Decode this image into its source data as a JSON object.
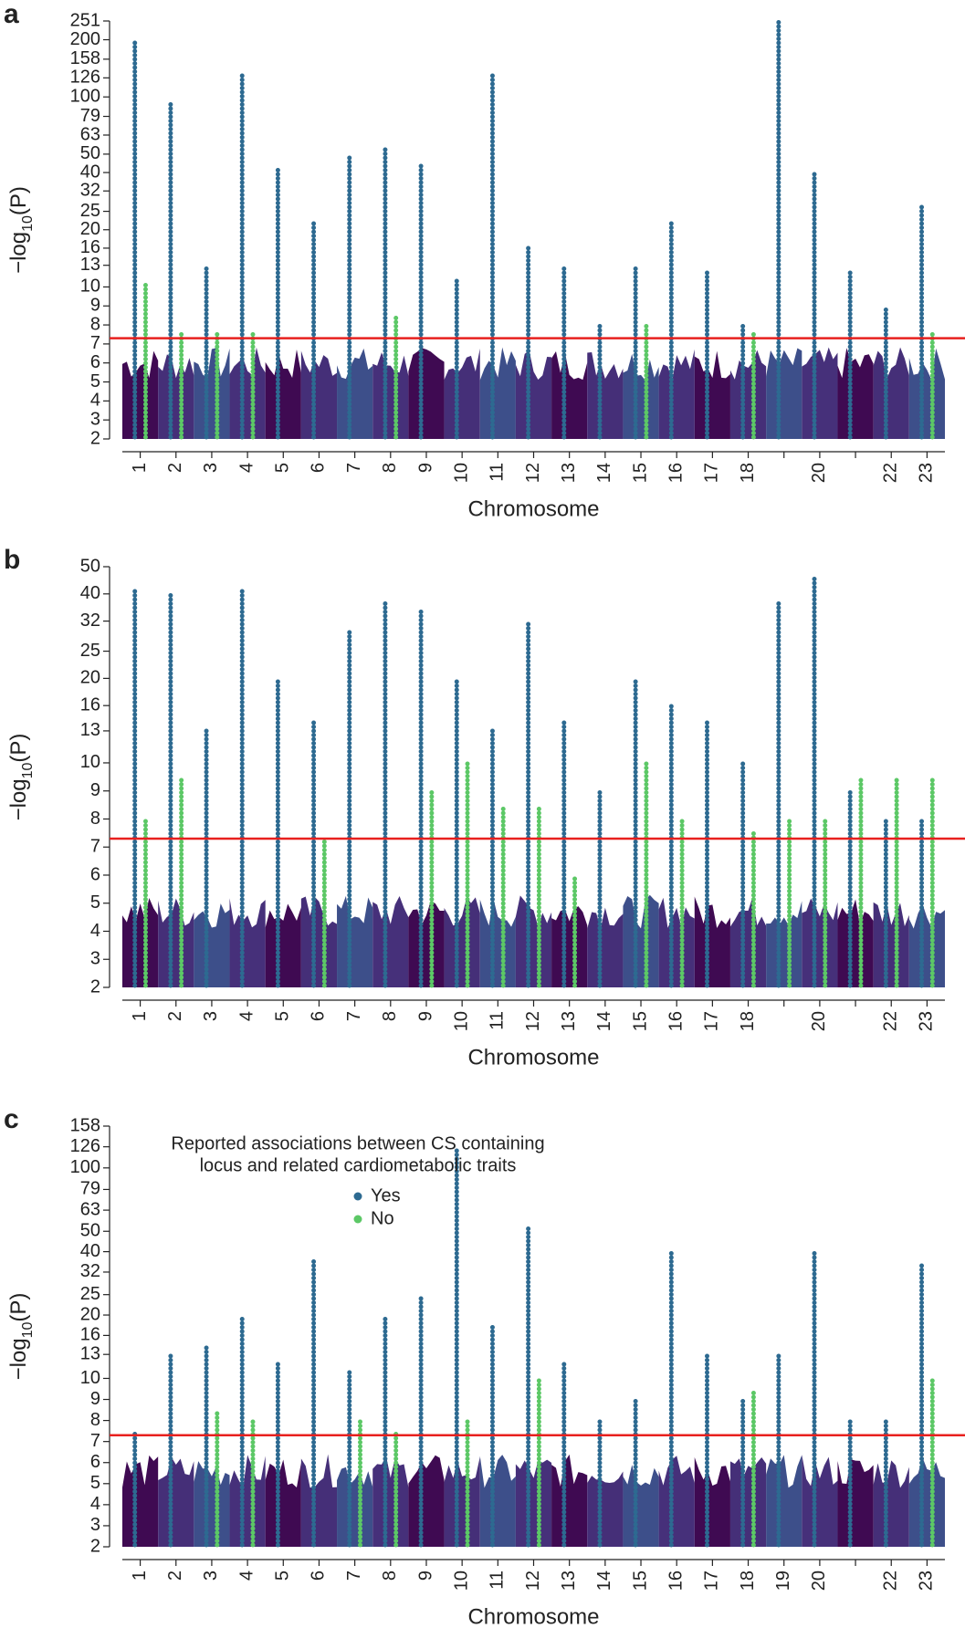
{
  "chart_data": [
    {
      "type": "scatter",
      "panel": "a",
      "xlabel": "Chromosome",
      "ylabel": [
        "−log",
        "10",
        "(P)"
      ],
      "categories": [
        "1",
        "2",
        "3",
        "4",
        "5",
        "6",
        "7",
        "8",
        "9",
        "10",
        "11",
        "12",
        "13",
        "14",
        "15",
        "16",
        "17",
        "18",
        null,
        "20",
        null,
        "22",
        "23"
      ],
      "series": [
        {
          "name": "Yes",
          "color": "#2d6a91",
          "values": [
            200,
            95,
            13,
            130,
            42,
            22,
            50,
            55,
            45,
            11,
            135,
            16,
            13,
            8,
            13,
            22,
            12,
            8,
            251,
            40,
            12,
            9,
            27
          ]
        },
        {
          "name": "No",
          "color": "#5cc866",
          "values": [
            10.5,
            7.5,
            7.5,
            7.7,
            null,
            null,
            null,
            8.5,
            null,
            null,
            null,
            null,
            null,
            null,
            8,
            null,
            null,
            7.5,
            null,
            null,
            null,
            null,
            7.5
          ]
        }
      ],
      "ylim": [
        2,
        251
      ],
      "ybreak": 10,
      "yticks": [
        2,
        3,
        4,
        5,
        6,
        7,
        8,
        9,
        10,
        13,
        16,
        20,
        25,
        32,
        40,
        50,
        63,
        79,
        100,
        126,
        158,
        200,
        251
      ],
      "threshold": 7.3,
      "threshold_color": "#e8201e"
    },
    {
      "type": "scatter",
      "panel": "b",
      "xlabel": "Chromosome",
      "ylabel": [
        "−log",
        "10",
        "(P)"
      ],
      "categories": [
        "1",
        "2",
        "3",
        "4",
        "5",
        "6",
        "7",
        "8",
        "9",
        "10",
        "11",
        "12",
        "13",
        "14",
        "15",
        "16",
        "17",
        "18",
        null,
        "20",
        null,
        "22",
        "23"
      ],
      "series": [
        {
          "name": "Yes",
          "color": "#2d6a91",
          "values": [
            42,
            40,
            13,
            42,
            20,
            14,
            30,
            38,
            35,
            20,
            13,
            32,
            14,
            9,
            20,
            16,
            14,
            10,
            38,
            46,
            9,
            8,
            8
          ]
        },
        {
          "name": "No",
          "color": "#5cc866",
          "values": [
            8,
            9.5,
            null,
            null,
            null,
            7.3,
            null,
            null,
            9,
            10,
            8.5,
            8.5,
            6,
            null,
            10,
            8,
            null,
            7.5,
            8,
            8,
            9.5,
            9.5,
            9.5
          ]
        }
      ],
      "ylim": [
        2,
        50
      ],
      "ybreak": 10,
      "yticks": [
        2,
        3,
        4,
        5,
        6,
        7,
        8,
        9,
        10,
        13,
        16,
        20,
        25,
        32,
        40,
        50
      ],
      "threshold": 7.3,
      "threshold_color": "#e8201e"
    },
    {
      "type": "scatter",
      "panel": "c",
      "xlabel": "Chromosome",
      "ylabel": [
        "−log",
        "10",
        "(P)"
      ],
      "legend_title": [
        "Reported associations between CS containing",
        "locus and related cardiometabolic traits"
      ],
      "categories": [
        "1",
        "2",
        "3",
        "4",
        "5",
        "6",
        "7",
        "8",
        "9",
        "10",
        "11",
        "12",
        "13",
        "14",
        "15",
        "16",
        "17",
        "18",
        "19",
        "20",
        null,
        "22",
        "23"
      ],
      "series": [
        {
          "name": "Yes",
          "color": "#2d6a91",
          "values": [
            7.5,
            13,
            14,
            20,
            12,
            36,
            11,
            20,
            25,
            126,
            18,
            52,
            12,
            8,
            9,
            40,
            13,
            9,
            13,
            40,
            8,
            8,
            35
          ]
        },
        {
          "name": "No",
          "color": "#5cc866",
          "values": [
            null,
            null,
            8.5,
            8,
            null,
            null,
            8,
            7.5,
            null,
            8,
            null,
            10,
            null,
            null,
            null,
            null,
            null,
            9.5,
            null,
            null,
            null,
            null,
            10
          ]
        }
      ],
      "ylim": [
        2,
        158
      ],
      "ybreak": 10,
      "yticks": [
        2,
        3,
        4,
        5,
        6,
        7,
        8,
        9,
        10,
        13,
        16,
        20,
        25,
        32,
        40,
        50,
        63,
        79,
        100,
        126,
        158
      ],
      "threshold": 7.3,
      "threshold_color": "#e8201e"
    }
  ]
}
